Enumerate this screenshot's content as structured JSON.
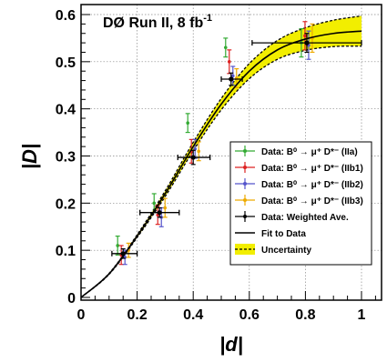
{
  "chart_data": {
    "type": "scatter",
    "title": "",
    "annotation": "DØ Run II, 8 fb",
    "annotation_superscript": "-1",
    "xlabel": "|d|",
    "ylabel": "|D|",
    "xlim": [
      0,
      1.08
    ],
    "ylim": [
      0,
      0.61
    ],
    "x_ticks": [
      0,
      0.2,
      0.4,
      0.6,
      0.8,
      1
    ],
    "x_tick_labels": [
      "0",
      "0.2",
      "0.4",
      "0.6",
      "0.8",
      "1"
    ],
    "y_ticks": [
      0,
      0.1,
      0.2,
      0.3,
      0.4,
      0.5,
      0.6
    ],
    "y_tick_labels": [
      "0",
      "0.1",
      "0.2",
      "0.3",
      "0.4",
      "0.5",
      "0.6"
    ],
    "grid": true,
    "legend_position": "right",
    "legend_entries": [
      "Data: B⁰ → μ⁺ D*⁻ (IIa)",
      "Data: B⁰ → μ⁺ D*⁻ (IIb1)",
      "Data: B⁰ → μ⁺ D*⁻ (IIb2)",
      "Data: B⁰ → μ⁺ D*⁻ (IIb3)",
      "Data: Weighted Ave.",
      "Fit to Data",
      "Uncertainty"
    ],
    "series": [
      {
        "color": "#33aa33",
        "x": [
          0.15,
          0.28,
          0.4,
          0.535,
          0.805
        ],
        "y": [
          0.11,
          0.2,
          0.37,
          0.53,
          0.54
        ],
        "yerr": [
          0.02,
          0.02,
          0.02,
          0.02,
          0.03
        ]
      },
      {
        "color": "#dd2222",
        "x": [
          0.15,
          0.28,
          0.4,
          0.535,
          0.805
        ],
        "y": [
          0.09,
          0.175,
          0.31,
          0.5,
          0.555
        ],
        "yerr": [
          0.02,
          0.02,
          0.025,
          0.025,
          0.03
        ]
      },
      {
        "color": "#5555cc",
        "x": [
          0.15,
          0.28,
          0.4,
          0.535,
          0.805
        ],
        "y": [
          0.085,
          0.17,
          0.315,
          0.47,
          0.535
        ],
        "yerr": [
          0.015,
          0.02,
          0.02,
          0.02,
          0.03
        ]
      },
      {
        "color": "#eeaa00",
        "x": [
          0.15,
          0.28,
          0.4,
          0.535,
          0.805
        ],
        "y": [
          0.1,
          0.19,
          0.31,
          0.465,
          0.55
        ],
        "yerr": [
          0.015,
          0.02,
          0.02,
          0.02,
          0.03
        ]
      },
      {
        "color": "#000000",
        "x": [
          0.15,
          0.28,
          0.4,
          0.535,
          0.805
        ],
        "y": [
          0.093,
          0.18,
          0.297,
          0.463,
          0.54
        ],
        "yerr": [
          0.01,
          0.01,
          0.015,
          0.013,
          0.02
        ],
        "xlo": [
          0.11,
          0.21,
          0.345,
          0.5,
          0.61
        ],
        "xhi": [
          0.2,
          0.35,
          0.46,
          0.575,
          1.0
        ]
      }
    ],
    "fit": {
      "color": "#000000",
      "band_color": "#f2ee00",
      "x": [
        0,
        0.1,
        0.2,
        0.3,
        0.4,
        0.5,
        0.6,
        0.7,
        0.8,
        0.9,
        1.0
      ],
      "y": [
        0,
        0.05,
        0.13,
        0.22,
        0.32,
        0.41,
        0.48,
        0.525,
        0.548,
        0.56,
        0.565
      ],
      "y_lo": [
        0,
        0.049,
        0.127,
        0.214,
        0.311,
        0.398,
        0.464,
        0.505,
        0.524,
        0.532,
        0.533
      ],
      "y_hi": [
        0,
        0.051,
        0.133,
        0.226,
        0.329,
        0.422,
        0.496,
        0.545,
        0.572,
        0.588,
        0.597
      ]
    }
  }
}
